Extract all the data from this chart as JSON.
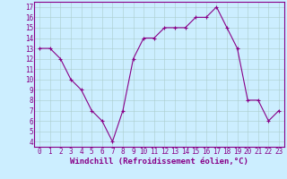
{
  "x": [
    0,
    1,
    2,
    3,
    4,
    5,
    6,
    7,
    8,
    9,
    10,
    11,
    12,
    13,
    14,
    15,
    16,
    17,
    18,
    19,
    20,
    21,
    22,
    23
  ],
  "y": [
    13,
    13,
    12,
    10,
    9,
    7,
    6,
    4,
    7,
    12,
    14,
    14,
    15,
    15,
    15,
    16,
    16,
    17,
    15,
    13,
    8,
    8,
    6,
    7
  ],
  "line_color": "#880088",
  "bg_color": "#cceeff",
  "grid_color": "#aacccc",
  "xlabel": "Windchill (Refroidissement éolien,°C)",
  "xlim": [
    -0.5,
    23.5
  ],
  "ylim": [
    3.5,
    17.5
  ],
  "yticks": [
    4,
    5,
    6,
    7,
    8,
    9,
    10,
    11,
    12,
    13,
    14,
    15,
    16,
    17
  ],
  "xticks": [
    0,
    1,
    2,
    3,
    4,
    5,
    6,
    7,
    8,
    9,
    10,
    11,
    12,
    13,
    14,
    15,
    16,
    17,
    18,
    19,
    20,
    21,
    22,
    23
  ],
  "tick_fontsize": 5.5,
  "xlabel_fontsize": 6.5,
  "marker_size": 2.5,
  "linewidth": 0.8
}
